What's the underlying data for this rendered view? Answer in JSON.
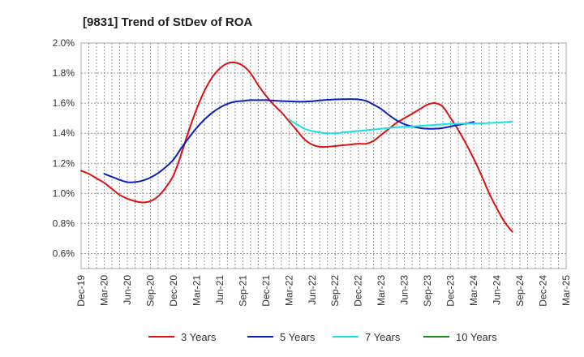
{
  "chart_data": {
    "type": "line",
    "title": "[9831]  Trend of StDev of ROA",
    "xlabel": "",
    "ylabel": "",
    "x_ticks": [
      "Dec-19",
      "Mar-20",
      "Jun-20",
      "Sep-20",
      "Dec-20",
      "Mar-21",
      "Jun-21",
      "Sep-21",
      "Dec-21",
      "Mar-22",
      "Jun-22",
      "Sep-22",
      "Dec-22",
      "Mar-23",
      "Jun-23",
      "Sep-23",
      "Dec-23",
      "Mar-24",
      "Jun-24",
      "Sep-24",
      "Dec-24",
      "Mar-25"
    ],
    "y_ticks": [
      "0.6%",
      "0.8%",
      "1.0%",
      "1.2%",
      "1.4%",
      "1.6%",
      "1.8%",
      "2.0%"
    ],
    "ylim": [
      0.5,
      2.0
    ],
    "grid": true,
    "legend_position": "bottom",
    "series": [
      {
        "name": "3 Years",
        "color": "#e01010",
        "points": [
          [
            "Dec-19",
            1.15
          ],
          [
            "Jan-20",
            1.13
          ],
          [
            "Feb-20",
            1.1
          ],
          [
            "Mar-20",
            1.07
          ],
          [
            "Apr-20",
            1.03
          ],
          [
            "May-20",
            0.99
          ],
          [
            "Jun-20",
            0.965
          ],
          [
            "Jul-20",
            0.948
          ],
          [
            "Aug-20",
            0.94
          ],
          [
            "Sep-20",
            0.948
          ],
          [
            "Oct-20",
            0.98
          ],
          [
            "Nov-20",
            1.04
          ],
          [
            "Dec-20",
            1.12
          ],
          [
            "Jan-21",
            1.26
          ],
          [
            "Feb-21",
            1.42
          ],
          [
            "Mar-21",
            1.56
          ],
          [
            "Apr-21",
            1.68
          ],
          [
            "May-21",
            1.77
          ],
          [
            "Jun-21",
            1.83
          ],
          [
            "Jul-21",
            1.865
          ],
          [
            "Aug-21",
            1.87
          ],
          [
            "Sep-21",
            1.85
          ],
          [
            "Oct-21",
            1.8
          ],
          [
            "Nov-21",
            1.72
          ],
          [
            "Dec-21",
            1.65
          ],
          [
            "Jan-22",
            1.59
          ],
          [
            "Feb-22",
            1.54
          ],
          [
            "Mar-22",
            1.48
          ],
          [
            "Apr-22",
            1.42
          ],
          [
            "May-22",
            1.36
          ],
          [
            "Jun-22",
            1.325
          ],
          [
            "Jul-22",
            1.31
          ],
          [
            "Aug-22",
            1.31
          ],
          [
            "Sep-22",
            1.315
          ],
          [
            "Oct-22",
            1.32
          ],
          [
            "Nov-22",
            1.325
          ],
          [
            "Dec-22",
            1.33
          ],
          [
            "Jan-23",
            1.33
          ],
          [
            "Feb-23",
            1.35
          ],
          [
            "Mar-23",
            1.39
          ],
          [
            "Apr-23",
            1.43
          ],
          [
            "May-23",
            1.47
          ],
          [
            "Jun-23",
            1.5
          ],
          [
            "Jul-23",
            1.53
          ],
          [
            "Aug-23",
            1.56
          ],
          [
            "Sep-23",
            1.59
          ],
          [
            "Oct-23",
            1.6
          ],
          [
            "Nov-23",
            1.575
          ],
          [
            "Dec-23",
            1.5
          ],
          [
            "Jan-24",
            1.42
          ],
          [
            "Feb-24",
            1.33
          ],
          [
            "Mar-24",
            1.23
          ],
          [
            "Apr-24",
            1.12
          ],
          [
            "May-24",
            1.0
          ],
          [
            "Jun-24",
            0.9
          ],
          [
            "Jul-24",
            0.81
          ],
          [
            "Aug-24",
            0.745
          ]
        ]
      },
      {
        "name": "5 Years",
        "color": "#0a1ebe",
        "points": [
          [
            "Dec-19",
            null
          ],
          [
            "Jan-20",
            null
          ],
          [
            "Feb-20",
            null
          ],
          [
            "Mar-20",
            1.13
          ],
          [
            "Apr-20",
            1.11
          ],
          [
            "May-20",
            1.09
          ],
          [
            "Jun-20",
            1.075
          ],
          [
            "Jul-20",
            1.075
          ],
          [
            "Aug-20",
            1.085
          ],
          [
            "Sep-20",
            1.105
          ],
          [
            "Oct-20",
            1.135
          ],
          [
            "Nov-20",
            1.175
          ],
          [
            "Dec-20",
            1.225
          ],
          [
            "Jan-21",
            1.3
          ],
          [
            "Feb-21",
            1.37
          ],
          [
            "Mar-21",
            1.435
          ],
          [
            "Apr-21",
            1.49
          ],
          [
            "May-21",
            1.535
          ],
          [
            "Jun-21",
            1.57
          ],
          [
            "Jul-21",
            1.595
          ],
          [
            "Aug-21",
            1.61
          ],
          [
            "Sep-21",
            1.615
          ],
          [
            "Oct-21",
            1.62
          ],
          [
            "Nov-21",
            1.62
          ],
          [
            "Dec-21",
            1.62
          ],
          [
            "Jan-22",
            1.617
          ],
          [
            "Feb-22",
            1.614
          ],
          [
            "Mar-22",
            1.612
          ],
          [
            "Apr-22",
            1.61
          ],
          [
            "May-22",
            1.61
          ],
          [
            "Jun-22",
            1.613
          ],
          [
            "Jul-22",
            1.618
          ],
          [
            "Aug-22",
            1.622
          ],
          [
            "Sep-22",
            1.625
          ],
          [
            "Oct-22",
            1.626
          ],
          [
            "Nov-22",
            1.627
          ],
          [
            "Dec-22",
            1.625
          ],
          [
            "Jan-23",
            1.615
          ],
          [
            "Feb-23",
            1.59
          ],
          [
            "Mar-23",
            1.56
          ],
          [
            "Apr-23",
            1.52
          ],
          [
            "May-23",
            1.485
          ],
          [
            "Jun-23",
            1.46
          ],
          [
            "Jul-23",
            1.445
          ],
          [
            "Aug-23",
            1.435
          ],
          [
            "Sep-23",
            1.43
          ],
          [
            "Oct-23",
            1.43
          ],
          [
            "Nov-23",
            1.435
          ],
          [
            "Dec-23",
            1.445
          ],
          [
            "Jan-24",
            1.455
          ],
          [
            "Feb-24",
            1.465
          ],
          [
            "Mar-24",
            1.475
          ]
        ]
      },
      {
        "name": "7 Years",
        "color": "#18e0e8",
        "points": [
          [
            "Mar-22",
            1.49
          ],
          [
            "Apr-22",
            1.46
          ],
          [
            "May-22",
            1.43
          ],
          [
            "Jun-22",
            1.415
          ],
          [
            "Jul-22",
            1.405
          ],
          [
            "Aug-22",
            1.4
          ],
          [
            "Sep-22",
            1.4
          ],
          [
            "Oct-22",
            1.405
          ],
          [
            "Nov-22",
            1.41
          ],
          [
            "Dec-22",
            1.415
          ],
          [
            "Jan-23",
            1.42
          ],
          [
            "Feb-23",
            1.425
          ],
          [
            "Mar-23",
            1.43
          ],
          [
            "Apr-23",
            1.435
          ],
          [
            "May-23",
            1.44
          ],
          [
            "Jun-23",
            1.443
          ],
          [
            "Jul-23",
            1.445
          ],
          [
            "Aug-23",
            1.448
          ],
          [
            "Sep-23",
            1.452
          ],
          [
            "Oct-23",
            1.456
          ],
          [
            "Nov-23",
            1.46
          ],
          [
            "Dec-23",
            1.462
          ],
          [
            "Jan-24",
            1.464
          ],
          [
            "Feb-24",
            1.465
          ],
          [
            "Mar-24",
            1.465
          ],
          [
            "Apr-24",
            1.466
          ],
          [
            "May-24",
            1.468
          ],
          [
            "Jun-24",
            1.47
          ],
          [
            "Jul-24",
            1.473
          ],
          [
            "Aug-24",
            1.478
          ]
        ]
      },
      {
        "name": "10 Years",
        "color": "#1a8a1a",
        "points": []
      }
    ]
  }
}
